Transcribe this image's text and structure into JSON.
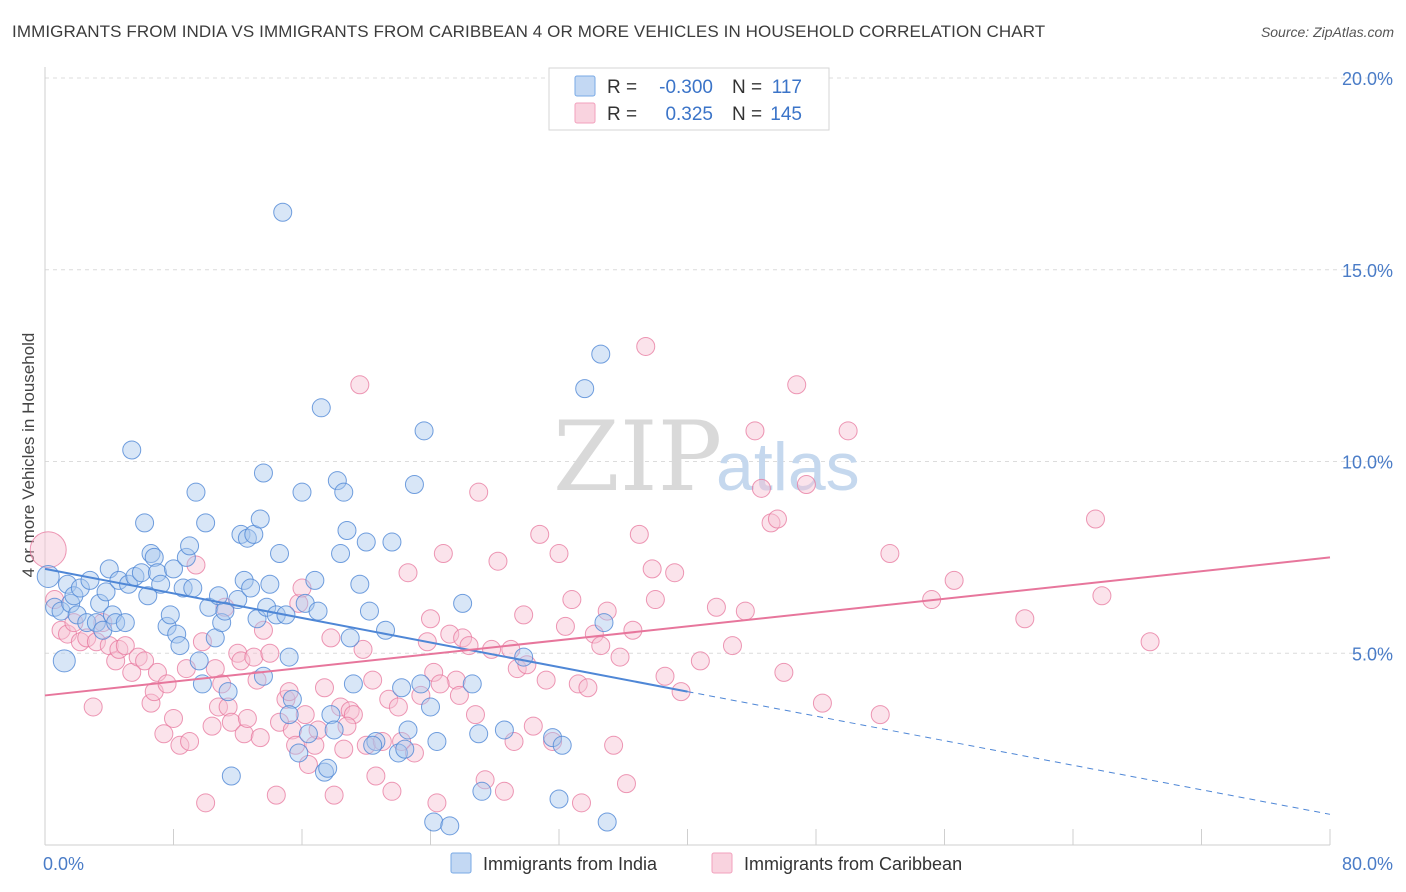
{
  "header": {
    "title": "IMMIGRANTS FROM INDIA VS IMMIGRANTS FROM CARIBBEAN 4 OR MORE VEHICLES IN HOUSEHOLD CORRELATION CHART",
    "source": "Source: ZipAtlas.com"
  },
  "watermark": {
    "zip": "ZIP",
    "atlas": "atlas"
  },
  "legend": {
    "rows": [
      {
        "r_label": "R =",
        "r_value": "-0.300",
        "n_label": "N =",
        "n_value": "117",
        "color": "#7aaae6"
      },
      {
        "r_label": "R =",
        "r_value": "0.325",
        "n_label": "N =",
        "n_value": "145",
        "color": "#f2a1bd"
      }
    ]
  },
  "bottom_legend": {
    "items": [
      {
        "label": "Immigrants from India",
        "color": "#7aaae6"
      },
      {
        "label": "Immigrants from Caribbean",
        "color": "#f2a1bd"
      }
    ]
  },
  "chart_data": {
    "type": "scatter",
    "title": "IMMIGRANTS FROM INDIA VS IMMIGRANTS FROM CARIBBEAN 4 OR MORE VEHICLES IN HOUSEHOLD CORRELATION CHART",
    "xlabel": "",
    "ylabel": "4 or more Vehicles in Household",
    "xlim": [
      0,
      80
    ],
    "ylim": [
      0,
      20
    ],
    "x_tick_labels": [
      "0.0%",
      "80.0%"
    ],
    "y_tick_labels": [
      "5.0%",
      "10.0%",
      "15.0%",
      "20.0%"
    ],
    "y_ticks": [
      5,
      10,
      15,
      20
    ],
    "grid": true,
    "legend_position": "top-center",
    "colors": {
      "india": "#4f87d6",
      "caribbean": "#e7769c",
      "india_fill": "#a9c8ee",
      "caribbean_fill": "#f7c0d2"
    },
    "series": [
      {
        "name": "Immigrants from India",
        "r": -0.3,
        "n": 117,
        "trend": {
          "x0": 0,
          "y0": 7.2,
          "x1": 40,
          "y1": 4.0,
          "dashed_to_x": 80,
          "dashed_to_y": 0.8
        },
        "points": [
          [
            0.2,
            7.0
          ],
          [
            0.6,
            6.2
          ],
          [
            1.0,
            6.1
          ],
          [
            1.2,
            4.8
          ],
          [
            1.4,
            6.8
          ],
          [
            1.6,
            6.3
          ],
          [
            1.8,
            6.5
          ],
          [
            2.0,
            6.0
          ],
          [
            2.2,
            6.7
          ],
          [
            2.6,
            5.8
          ],
          [
            2.8,
            6.9
          ],
          [
            3.2,
            5.8
          ],
          [
            3.4,
            6.3
          ],
          [
            3.6,
            5.6
          ],
          [
            3.8,
            6.6
          ],
          [
            4.0,
            7.2
          ],
          [
            4.2,
            6.0
          ],
          [
            4.4,
            5.8
          ],
          [
            4.6,
            6.9
          ],
          [
            5.0,
            5.8
          ],
          [
            5.2,
            6.8
          ],
          [
            5.4,
            10.3
          ],
          [
            5.6,
            7.0
          ],
          [
            6.0,
            7.1
          ],
          [
            6.2,
            8.4
          ],
          [
            6.4,
            6.5
          ],
          [
            6.6,
            7.6
          ],
          [
            6.8,
            7.5
          ],
          [
            7.0,
            7.1
          ],
          [
            7.2,
            6.8
          ],
          [
            7.6,
            5.7
          ],
          [
            7.8,
            6.0
          ],
          [
            8.0,
            7.2
          ],
          [
            8.2,
            5.5
          ],
          [
            8.4,
            5.2
          ],
          [
            8.6,
            6.7
          ],
          [
            8.8,
            7.5
          ],
          [
            9.0,
            7.8
          ],
          [
            9.2,
            6.7
          ],
          [
            9.4,
            9.2
          ],
          [
            9.6,
            4.8
          ],
          [
            9.8,
            4.2
          ],
          [
            10.0,
            8.4
          ],
          [
            10.2,
            6.2
          ],
          [
            10.6,
            5.4
          ],
          [
            10.8,
            6.5
          ],
          [
            11.0,
            5.8
          ],
          [
            11.2,
            6.1
          ],
          [
            11.4,
            4.0
          ],
          [
            11.6,
            1.8
          ],
          [
            12.0,
            6.4
          ],
          [
            12.2,
            8.1
          ],
          [
            12.4,
            6.9
          ],
          [
            12.6,
            8.0
          ],
          [
            12.8,
            6.7
          ],
          [
            13.0,
            8.1
          ],
          [
            13.2,
            5.9
          ],
          [
            13.4,
            8.5
          ],
          [
            13.6,
            9.7
          ],
          [
            13.8,
            6.2
          ],
          [
            14.0,
            6.8
          ],
          [
            14.4,
            6.0
          ],
          [
            14.6,
            7.6
          ],
          [
            14.8,
            16.5
          ],
          [
            15.0,
            6.0
          ],
          [
            15.2,
            4.9
          ],
          [
            15.4,
            3.8
          ],
          [
            15.8,
            2.4
          ],
          [
            16.0,
            9.2
          ],
          [
            16.2,
            6.3
          ],
          [
            16.4,
            2.9
          ],
          [
            16.8,
            6.9
          ],
          [
            17.0,
            6.1
          ],
          [
            17.2,
            11.4
          ],
          [
            17.4,
            1.9
          ],
          [
            17.8,
            3.4
          ],
          [
            18.0,
            3.0
          ],
          [
            18.2,
            9.5
          ],
          [
            18.4,
            7.6
          ],
          [
            18.6,
            9.2
          ],
          [
            18.8,
            8.2
          ],
          [
            19.0,
            5.4
          ],
          [
            19.2,
            4.2
          ],
          [
            19.6,
            6.8
          ],
          [
            20.0,
            7.9
          ],
          [
            20.2,
            6.1
          ],
          [
            20.6,
            2.7
          ],
          [
            21.2,
            5.6
          ],
          [
            21.6,
            7.9
          ],
          [
            22.0,
            2.4
          ],
          [
            22.2,
            4.1
          ],
          [
            22.6,
            3.0
          ],
          [
            23.0,
            9.4
          ],
          [
            23.4,
            4.2
          ],
          [
            23.6,
            10.8
          ],
          [
            24.0,
            3.6
          ],
          [
            24.2,
            0.6
          ],
          [
            24.4,
            2.7
          ],
          [
            25.2,
            0.5
          ],
          [
            26.0,
            6.3
          ],
          [
            26.6,
            4.2
          ],
          [
            27.0,
            2.9
          ],
          [
            27.2,
            1.4
          ],
          [
            28.6,
            3.0
          ],
          [
            29.8,
            4.9
          ],
          [
            31.6,
            2.8
          ],
          [
            32.0,
            1.2
          ],
          [
            32.2,
            2.6
          ],
          [
            33.6,
            11.9
          ],
          [
            34.6,
            12.8
          ],
          [
            34.8,
            5.8
          ],
          [
            35.0,
            0.6
          ],
          [
            20.4,
            2.6
          ],
          [
            15.2,
            3.4
          ],
          [
            22.4,
            2.5
          ],
          [
            13.6,
            4.4
          ],
          [
            17.6,
            2.0
          ]
        ]
      },
      {
        "name": "Immigrants from Caribbean",
        "r": 0.325,
        "n": 145,
        "trend": {
          "x0": 0,
          "y0": 3.9,
          "x1": 80,
          "y1": 7.5
        },
        "points": [
          [
            0.2,
            7.7
          ],
          [
            0.6,
            6.4
          ],
          [
            1.0,
            5.6
          ],
          [
            1.4,
            5.5
          ],
          [
            1.8,
            5.8
          ],
          [
            2.2,
            5.3
          ],
          [
            2.6,
            5.4
          ],
          [
            3.0,
            3.6
          ],
          [
            3.2,
            5.3
          ],
          [
            3.6,
            5.8
          ],
          [
            4.0,
            5.2
          ],
          [
            4.4,
            4.8
          ],
          [
            4.6,
            5.1
          ],
          [
            5.0,
            5.2
          ],
          [
            5.4,
            4.5
          ],
          [
            5.8,
            4.9
          ],
          [
            6.2,
            4.8
          ],
          [
            6.6,
            3.7
          ],
          [
            6.8,
            4.0
          ],
          [
            7.0,
            4.5
          ],
          [
            7.4,
            2.9
          ],
          [
            7.6,
            4.2
          ],
          [
            8.0,
            3.3
          ],
          [
            8.4,
            2.6
          ],
          [
            8.8,
            4.6
          ],
          [
            9.0,
            2.7
          ],
          [
            9.4,
            7.3
          ],
          [
            9.8,
            5.3
          ],
          [
            10.0,
            1.1
          ],
          [
            10.4,
            3.1
          ],
          [
            10.6,
            4.6
          ],
          [
            10.8,
            3.6
          ],
          [
            11.0,
            4.2
          ],
          [
            11.2,
            6.2
          ],
          [
            11.4,
            3.6
          ],
          [
            11.6,
            3.2
          ],
          [
            12.0,
            5.0
          ],
          [
            12.2,
            4.8
          ],
          [
            12.4,
            2.9
          ],
          [
            12.6,
            3.3
          ],
          [
            13.0,
            4.9
          ],
          [
            13.2,
            4.3
          ],
          [
            13.4,
            2.8
          ],
          [
            13.6,
            5.6
          ],
          [
            14.0,
            5.0
          ],
          [
            14.4,
            1.3
          ],
          [
            14.6,
            3.2
          ],
          [
            15.0,
            3.8
          ],
          [
            15.2,
            4.0
          ],
          [
            15.4,
            3.0
          ],
          [
            15.6,
            2.6
          ],
          [
            15.8,
            6.3
          ],
          [
            16.0,
            6.7
          ],
          [
            16.2,
            3.4
          ],
          [
            16.4,
            2.1
          ],
          [
            16.8,
            2.6
          ],
          [
            17.0,
            3.0
          ],
          [
            17.4,
            4.1
          ],
          [
            17.8,
            5.4
          ],
          [
            18.0,
            1.3
          ],
          [
            18.4,
            3.6
          ],
          [
            18.6,
            2.5
          ],
          [
            19.0,
            3.5
          ],
          [
            19.2,
            3.4
          ],
          [
            19.6,
            12.0
          ],
          [
            19.8,
            5.1
          ],
          [
            20.0,
            2.6
          ],
          [
            20.4,
            4.3
          ],
          [
            20.6,
            1.8
          ],
          [
            21.0,
            2.7
          ],
          [
            21.4,
            3.8
          ],
          [
            21.6,
            1.4
          ],
          [
            22.0,
            3.6
          ],
          [
            22.2,
            2.7
          ],
          [
            22.6,
            7.1
          ],
          [
            23.0,
            2.4
          ],
          [
            23.4,
            3.9
          ],
          [
            23.8,
            5.3
          ],
          [
            24.0,
            5.9
          ],
          [
            24.2,
            4.5
          ],
          [
            24.4,
            1.1
          ],
          [
            24.8,
            7.6
          ],
          [
            25.2,
            5.5
          ],
          [
            25.6,
            4.3
          ],
          [
            25.8,
            3.9
          ],
          [
            26.0,
            5.4
          ],
          [
            26.4,
            5.2
          ],
          [
            26.8,
            3.4
          ],
          [
            27.0,
            9.2
          ],
          [
            27.4,
            1.7
          ],
          [
            27.8,
            5.1
          ],
          [
            28.2,
            7.4
          ],
          [
            28.6,
            1.4
          ],
          [
            29.0,
            5.1
          ],
          [
            29.4,
            4.6
          ],
          [
            29.8,
            6.0
          ],
          [
            30.0,
            4.7
          ],
          [
            30.4,
            3.1
          ],
          [
            30.8,
            8.1
          ],
          [
            31.2,
            4.3
          ],
          [
            31.6,
            2.7
          ],
          [
            32.0,
            7.6
          ],
          [
            32.4,
            5.7
          ],
          [
            32.8,
            6.4
          ],
          [
            33.2,
            4.2
          ],
          [
            33.4,
            1.1
          ],
          [
            33.8,
            4.1
          ],
          [
            34.2,
            5.5
          ],
          [
            34.6,
            5.2
          ],
          [
            35.0,
            6.1
          ],
          [
            35.4,
            2.6
          ],
          [
            35.8,
            4.9
          ],
          [
            36.2,
            1.6
          ],
          [
            36.6,
            5.6
          ],
          [
            37.0,
            8.1
          ],
          [
            37.4,
            13.0
          ],
          [
            37.8,
            7.2
          ],
          [
            38.0,
            6.4
          ],
          [
            38.6,
            4.4
          ],
          [
            39.2,
            7.1
          ],
          [
            39.6,
            4.0
          ],
          [
            40.8,
            4.8
          ],
          [
            41.8,
            6.2
          ],
          [
            42.8,
            5.2
          ],
          [
            43.6,
            6.1
          ],
          [
            44.2,
            10.8
          ],
          [
            44.6,
            9.3
          ],
          [
            45.2,
            8.4
          ],
          [
            45.6,
            8.5
          ],
          [
            46.0,
            4.5
          ],
          [
            46.8,
            12.0
          ],
          [
            47.4,
            9.4
          ],
          [
            48.4,
            3.7
          ],
          [
            50.0,
            10.8
          ],
          [
            52.0,
            3.4
          ],
          [
            52.6,
            7.6
          ],
          [
            55.2,
            6.4
          ],
          [
            56.6,
            6.9
          ],
          [
            61.0,
            5.9
          ],
          [
            65.4,
            8.5
          ],
          [
            65.8,
            6.5
          ],
          [
            68.8,
            5.3
          ],
          [
            24.6,
            4.2
          ],
          [
            18.8,
            3.1
          ],
          [
            29.2,
            2.7
          ]
        ]
      }
    ]
  }
}
